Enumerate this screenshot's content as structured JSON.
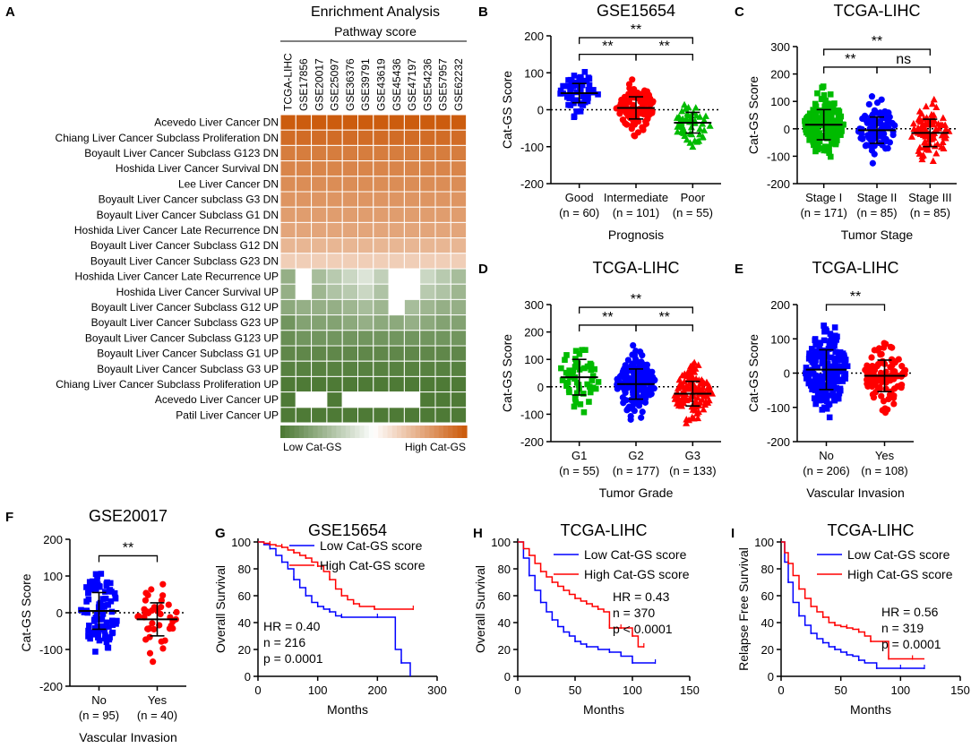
{
  "panel_letters": {
    "A": "A",
    "B": "B",
    "C": "C",
    "D": "D",
    "E": "E",
    "F": "F",
    "G": "G",
    "H": "H",
    "I": "I"
  },
  "colors": {
    "heat_low": "#4e7a36",
    "heat_mid": "#ffffff",
    "heat_high": "#cc5c0e",
    "blue": "#0000ff",
    "red": "#ff0000",
    "green": "#00bb00"
  },
  "chart_data": [
    {
      "panel": "A",
      "type": "heatmap",
      "title": "Enrichment Analysis",
      "subtitle": "Pathway score",
      "columns": [
        "TCGA-LIHC",
        "GSE17856",
        "GSE20017",
        "GSE25097",
        "GSE36376",
        "GSE39791",
        "GSE43619",
        "GSE45436",
        "GSE47197",
        "GSE54236",
        "GSE57957",
        "GSE62232"
      ],
      "rows": [
        "Acevedo Liver Cancer DN",
        "Chiang Liver Cancer Subclass Proliferation DN",
        "Boyault Liver Cancer Subclass G123 DN",
        "Hoshida Liver Cancer Survival DN",
        "Lee Liver Cancer DN",
        "Boyault Liver Cancer subclass G3 DN",
        "Boyault Liver Cancer Subclass G1 DN",
        "Hoshida Liver Cancer Late Recurrence DN",
        "Boyault Liver Cancer Subclass G12 DN",
        "Boyault Liver Cancer Subclass G23 DN",
        "Hoshida Liver Cancer Late Recurrence UP",
        "Hoshida Liver Cancer Survival UP",
        "Boyault Liver Cancer Subclass G12 UP",
        "Boyault Liver Cancer Subclass G23 UP",
        "Boyault Liver Cancer Subclass G123 UP",
        "Boyault Liver Cancer Subclass G1 UP",
        "Boyault Liver Cancer Subclass G3 UP",
        "Chiang Liver Cancer Subclass Proliferation UP",
        "Acevedo Liver Cancer UP",
        "Patil Liver Cancer UP"
      ],
      "values": [
        [
          1.0,
          1.0,
          1.0,
          1.0,
          1.0,
          1.0,
          1.0,
          1.0,
          1.0,
          1.0,
          1.0,
          1.0
        ],
        [
          0.9,
          0.9,
          0.9,
          0.9,
          0.9,
          0.9,
          0.9,
          0.9,
          0.9,
          0.9,
          0.9,
          0.9
        ],
        [
          0.8,
          0.8,
          0.8,
          0.8,
          0.8,
          0.8,
          0.8,
          0.8,
          0.8,
          0.8,
          0.8,
          0.8
        ],
        [
          0.75,
          0.75,
          0.75,
          0.75,
          0.75,
          0.75,
          0.75,
          0.75,
          0.75,
          0.75,
          0.75,
          0.75
        ],
        [
          0.7,
          0.7,
          0.7,
          0.7,
          0.7,
          0.7,
          0.7,
          0.7,
          0.7,
          0.7,
          0.7,
          0.7
        ],
        [
          0.65,
          0.65,
          0.65,
          0.65,
          0.65,
          0.65,
          0.65,
          0.65,
          0.65,
          0.65,
          0.65,
          0.65
        ],
        [
          0.6,
          0.6,
          0.6,
          0.6,
          0.6,
          0.6,
          0.6,
          0.6,
          0.6,
          0.6,
          0.6,
          0.6
        ],
        [
          0.55,
          0.55,
          0.55,
          0.55,
          0.55,
          0.55,
          0.55,
          0.55,
          0.55,
          0.55,
          0.55,
          0.55
        ],
        [
          0.45,
          0.45,
          0.45,
          0.45,
          0.45,
          0.45,
          0.45,
          0.45,
          0.45,
          0.45,
          0.45,
          0.45
        ],
        [
          0.3,
          0.3,
          0.3,
          0.3,
          0.3,
          0.3,
          0.3,
          0.3,
          0.3,
          0.3,
          0.3,
          0.3
        ],
        [
          -0.6,
          null,
          -0.5,
          -0.4,
          -0.3,
          -0.2,
          -0.35,
          null,
          null,
          -0.3,
          -0.4,
          -0.5
        ],
        [
          -0.6,
          null,
          -0.55,
          -0.45,
          -0.4,
          -0.3,
          -0.45,
          null,
          null,
          -0.4,
          -0.45,
          -0.55
        ],
        [
          -0.65,
          -0.6,
          -0.6,
          -0.6,
          -0.55,
          -0.5,
          -0.55,
          null,
          -0.5,
          -0.55,
          -0.6,
          -0.6
        ],
        [
          -0.8,
          -0.7,
          -0.7,
          -0.7,
          -0.65,
          -0.6,
          -0.65,
          -0.65,
          -0.6,
          -0.65,
          -0.7,
          -0.7
        ],
        [
          -0.85,
          -0.8,
          -0.8,
          -0.8,
          -0.8,
          -0.8,
          -0.8,
          -0.8,
          -0.8,
          -0.8,
          -0.8,
          -0.8
        ],
        [
          -0.9,
          -0.9,
          -0.9,
          -0.9,
          -0.9,
          -0.9,
          -0.9,
          -0.9,
          -0.9,
          -0.9,
          -0.9,
          -0.9
        ],
        [
          -0.95,
          -0.95,
          -0.95,
          -0.95,
          -0.95,
          -0.95,
          -0.95,
          -0.95,
          -0.95,
          -0.95,
          -0.95,
          -0.95
        ],
        [
          -1.0,
          -1.0,
          -1.0,
          -1.0,
          -1.0,
          -1.0,
          -1.0,
          -1.0,
          -1.0,
          -1.0,
          -1.0,
          -1.0
        ],
        [
          -1.0,
          null,
          null,
          -1.0,
          null,
          null,
          null,
          null,
          null,
          -1.0,
          -1.0,
          -1.0
        ],
        [
          -1.0,
          -1.0,
          -1.0,
          -1.0,
          -1.0,
          -1.0,
          -1.0,
          -1.0,
          -1.0,
          -1.0,
          -1.0,
          -1.0
        ]
      ],
      "legend": {
        "low": "Low Cat-GS",
        "high": "High Cat-GS"
      }
    },
    {
      "panel": "B",
      "type": "scatter",
      "title": "GSE15654",
      "ylabel": "Cat-GS Score",
      "xlabel": "Prognosis",
      "ylim": [
        -200,
        200
      ],
      "yticks": [
        "200",
        "100",
        "0",
        "-100",
        "-200"
      ],
      "groups": [
        {
          "label": "Good",
          "n": "(n = 60)",
          "count": 60,
          "mean": 45,
          "sd": 26,
          "color": "#0000ff",
          "marker": "square"
        },
        {
          "label": "Intermediate",
          "n": "(n = 101)",
          "count": 101,
          "mean": 5,
          "sd": 30,
          "color": "#ff0000",
          "marker": "circle"
        },
        {
          "label": "Poor",
          "n": "(n = 55)",
          "count": 55,
          "mean": -35,
          "sd": 28,
          "color": "#00bb00",
          "marker": "triangle"
        }
      ],
      "brackets": [
        {
          "from": 0,
          "to": 2,
          "level": 195,
          "label": "**"
        },
        {
          "from": 0,
          "to": 1,
          "level": 150,
          "label": "**"
        },
        {
          "from": 1,
          "to": 2,
          "level": 150,
          "label": "**"
        }
      ]
    },
    {
      "panel": "C",
      "type": "scatter",
      "title": "TCGA-LIHC",
      "ylabel": "Cat-GS Score",
      "xlabel": "Tumor Stage",
      "ylim": [
        -200,
        300
      ],
      "yticks": [
        "300",
        "200",
        "100",
        "0",
        "-100",
        "-200"
      ],
      "groups": [
        {
          "label": "Stage I",
          "n": "(n = 171)",
          "count": 171,
          "mean": 15,
          "sd": 55,
          "color": "#00bb00",
          "marker": "square"
        },
        {
          "label": "Stage II",
          "n": "(n = 85)",
          "count": 85,
          "mean": -5,
          "sd": 48,
          "color": "#0000ff",
          "marker": "circle"
        },
        {
          "label": "Stage III",
          "n": "(n = 85)",
          "count": 85,
          "mean": -15,
          "sd": 50,
          "color": "#ff0000",
          "marker": "triangle"
        }
      ],
      "brackets": [
        {
          "from": 0,
          "to": 2,
          "level": 290,
          "label": "**"
        },
        {
          "from": 0,
          "to": 1,
          "level": 225,
          "label": "**"
        },
        {
          "from": 1,
          "to": 2,
          "level": 225,
          "label": "ns"
        }
      ]
    },
    {
      "panel": "D",
      "type": "scatter",
      "title": "TCGA-LIHC",
      "ylabel": "Cat-GS Score",
      "xlabel": "Tumor Grade",
      "ylim": [
        -200,
        300
      ],
      "yticks": [
        "300",
        "200",
        "100",
        "0",
        "-100",
        "-200"
      ],
      "groups": [
        {
          "label": "G1",
          "n": "(n = 55)",
          "count": 55,
          "mean": 35,
          "sd": 65,
          "color": "#00bb00",
          "marker": "square"
        },
        {
          "label": "G2",
          "n": "(n = 177)",
          "count": 177,
          "mean": 10,
          "sd": 55,
          "color": "#0000ff",
          "marker": "circle"
        },
        {
          "label": "G3",
          "n": "(n = 133)",
          "count": 133,
          "mean": -25,
          "sd": 45,
          "color": "#ff0000",
          "marker": "triangle"
        }
      ],
      "brackets": [
        {
          "from": 0,
          "to": 2,
          "level": 290,
          "label": "**"
        },
        {
          "from": 0,
          "to": 1,
          "level": 225,
          "label": "**"
        },
        {
          "from": 1,
          "to": 2,
          "level": 225,
          "label": "**"
        }
      ]
    },
    {
      "panel": "E",
      "type": "scatter",
      "title": "TCGA-LIHC",
      "ylabel": "Cat-GS Score",
      "xlabel": "Vascular Invasion",
      "ylim": [
        -200,
        200
      ],
      "yticks": [
        "200",
        "100",
        "0",
        "-100",
        "-200"
      ],
      "groups": [
        {
          "label": "No",
          "n": "(n = 206)",
          "count": 206,
          "mean": 10,
          "sd": 58,
          "color": "#0000ff",
          "marker": "square"
        },
        {
          "label": "Yes",
          "n": "(n = 108)",
          "count": 108,
          "mean": -8,
          "sd": 46,
          "color": "#ff0000",
          "marker": "circle"
        }
      ],
      "brackets": [
        {
          "from": 0,
          "to": 1,
          "level": 200,
          "label": "**"
        }
      ]
    },
    {
      "panel": "F",
      "type": "scatter",
      "title": "GSE20017",
      "ylabel": "Cat-GS Score",
      "xlabel": "Vascular Invasion",
      "ylim": [
        -200,
        200
      ],
      "yticks": [
        "200",
        "100",
        "0",
        "-100",
        "-200"
      ],
      "groups": [
        {
          "label": "No",
          "n": "(n = 95)",
          "count": 95,
          "mean": 5,
          "sd": 50,
          "color": "#0000ff",
          "marker": "square"
        },
        {
          "label": "Yes",
          "n": "(n = 40)",
          "count": 40,
          "mean": -18,
          "sd": 45,
          "color": "#ff0000",
          "marker": "circle"
        }
      ],
      "brackets": [
        {
          "from": 0,
          "to": 1,
          "level": 155,
          "label": "**"
        }
      ]
    },
    {
      "panel": "G",
      "type": "line",
      "title": "GSE15654",
      "ylabel": "Overall Survival",
      "xlabel": "Months",
      "xlim": [
        0,
        300
      ],
      "ylim": [
        0,
        100
      ],
      "xticks": [
        "0",
        "100",
        "200",
        "300"
      ],
      "yticks": [
        "100",
        "80",
        "60",
        "40",
        "20",
        "0"
      ],
      "series": [
        {
          "name": "Low Cat-GS score",
          "color": "#0000ff",
          "x": [
            0,
            10,
            20,
            30,
            40,
            50,
            60,
            70,
            80,
            90,
            100,
            110,
            120,
            130,
            140,
            150,
            200,
            230,
            240,
            255
          ],
          "y": [
            100,
            98,
            95,
            90,
            85,
            80,
            72,
            66,
            60,
            55,
            52,
            50,
            48,
            45,
            44,
            44,
            44,
            20,
            10,
            0
          ]
        },
        {
          "name": "High Cat-GS score",
          "color": "#ff0000",
          "x": [
            0,
            10,
            20,
            30,
            40,
            50,
            60,
            70,
            80,
            90,
            100,
            110,
            120,
            130,
            140,
            150,
            160,
            170,
            195,
            200,
            260
          ],
          "y": [
            100,
            99,
            98,
            97,
            96,
            94,
            92,
            90,
            88,
            85,
            82,
            78,
            72,
            65,
            60,
            57,
            54,
            52,
            50,
            50,
            50
          ]
        }
      ],
      "annotations": [
        "HR = 0.40",
        "n = 216",
        "p = 0.0001"
      ]
    },
    {
      "panel": "H",
      "type": "line",
      "title": "TCGA-LIHC",
      "ylabel": "Overall Survival",
      "xlabel": "Months",
      "xlim": [
        0,
        150
      ],
      "ylim": [
        0,
        100
      ],
      "xticks": [
        "0",
        "50",
        "100",
        "150"
      ],
      "yticks": [
        "100",
        "80",
        "60",
        "40",
        "20",
        "0"
      ],
      "series": [
        {
          "name": "Low Cat-GS score",
          "color": "#0000ff",
          "x": [
            0,
            5,
            10,
            15,
            20,
            25,
            30,
            35,
            40,
            45,
            50,
            55,
            60,
            70,
            80,
            90,
            100,
            110,
            120
          ],
          "y": [
            100,
            88,
            75,
            64,
            55,
            48,
            42,
            37,
            33,
            30,
            26,
            24,
            22,
            20,
            18,
            15,
            10,
            10,
            10
          ]
        },
        {
          "name": "High Cat-GS score",
          "color": "#ff0000",
          "x": [
            0,
            5,
            10,
            15,
            20,
            25,
            30,
            35,
            40,
            45,
            50,
            55,
            60,
            65,
            70,
            75,
            80,
            85,
            90,
            95,
            100,
            105,
            110
          ],
          "y": [
            100,
            95,
            90,
            84,
            78,
            74,
            70,
            67,
            64,
            61,
            58,
            56,
            54,
            52,
            50,
            48,
            36,
            36,
            36,
            36,
            30,
            22,
            22
          ]
        }
      ],
      "annotations": [
        "HR = 0.43",
        "n = 370",
        "p < 0.0001"
      ]
    },
    {
      "panel": "I",
      "type": "line",
      "title": "TCGA-LIHC",
      "ylabel": "Relapse Free Survival",
      "xlabel": "Months",
      "xlim": [
        0,
        150
      ],
      "ylim": [
        0,
        100
      ],
      "xticks": [
        "0",
        "50",
        "100",
        "150"
      ],
      "yticks": [
        "100",
        "80",
        "60",
        "40",
        "20",
        "0"
      ],
      "series": [
        {
          "name": "Low Cat-GS score",
          "color": "#0000ff",
          "x": [
            0,
            3,
            6,
            10,
            15,
            20,
            25,
            30,
            35,
            40,
            45,
            50,
            55,
            60,
            65,
            70,
            80,
            90,
            100,
            110,
            120
          ],
          "y": [
            100,
            85,
            70,
            55,
            45,
            38,
            32,
            28,
            25,
            22,
            20,
            18,
            16,
            15,
            12,
            10,
            6,
            6,
            6,
            6,
            6
          ]
        },
        {
          "name": "High Cat-GS score",
          "color": "#ff0000",
          "x": [
            0,
            3,
            6,
            10,
            15,
            20,
            25,
            30,
            35,
            40,
            45,
            50,
            55,
            60,
            65,
            70,
            75,
            80,
            90,
            100,
            110,
            120
          ],
          "y": [
            100,
            92,
            84,
            75,
            65,
            58,
            52,
            48,
            44,
            40,
            38,
            37,
            36,
            35,
            33,
            30,
            26,
            26,
            13,
            13,
            13,
            13
          ]
        }
      ],
      "annotations": [
        "HR = 0.56",
        "n = 319",
        "p = 0.0001"
      ]
    }
  ]
}
